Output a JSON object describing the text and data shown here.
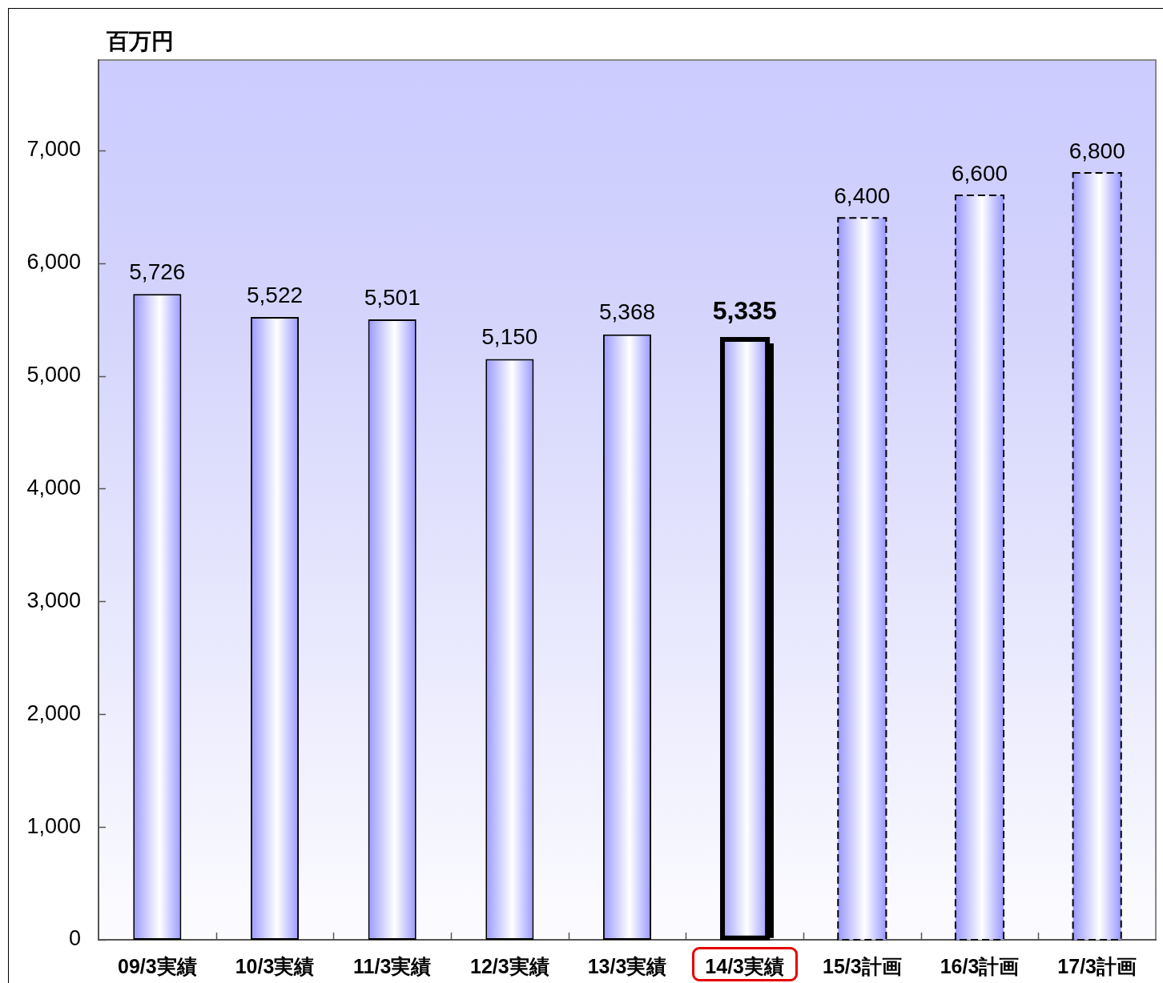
{
  "chart_data": {
    "type": "bar",
    "ylabel": "百万円",
    "categories": [
      "09/3実績",
      "10/3実績",
      "11/3実績",
      "12/3実績",
      "13/3実績",
      "14/3実績",
      "15/3計画",
      "16/3計画",
      "17/3計画"
    ],
    "series": [
      {
        "color": "#9999ff",
        "line_style": "solid",
        "values": [
          5726,
          5522,
          5501,
          5150,
          5368,
          5335,
          null,
          null,
          null
        ],
        "value_labels": [
          "5,726",
          "5,522",
          "5,501",
          "5,150",
          "5,368",
          "5,335",
          null,
          null,
          null
        ]
      },
      {
        "color": "#9999ff",
        "line_style": "dashed",
        "values": [
          null,
          null,
          null,
          null,
          null,
          null,
          6400,
          6600,
          6800
        ],
        "value_labels": [
          null,
          null,
          null,
          null,
          null,
          null,
          "6,400",
          "6,600",
          "6,800"
        ]
      }
    ],
    "ylim": [
      0,
      7800
    ],
    "yticks": [
      0,
      {
        "value": 1000,
        "label": "1,000"
      },
      {
        "value": 2000,
        "label": "2,000"
      },
      {
        "value": 3000,
        "label": "3,000"
      },
      {
        "value": 4000,
        "label": "4,000"
      },
      {
        "value": 5000,
        "label": "5,000"
      },
      {
        "value": 6000,
        "label": "6,000"
      },
      {
        "value": 7000,
        "label": "7,000"
      }
    ],
    "grid": false,
    "legend": false
  }
}
